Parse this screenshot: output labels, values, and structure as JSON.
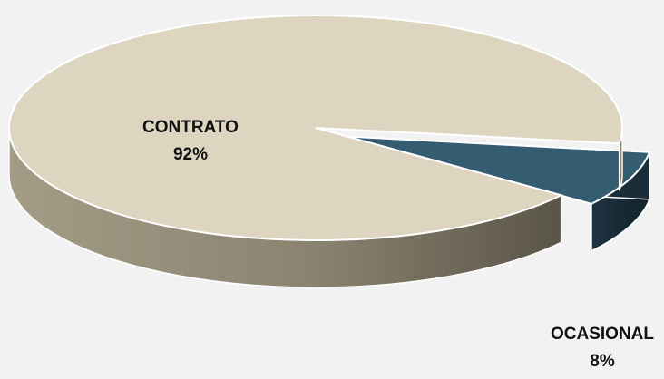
{
  "chart_data": {
    "type": "pie",
    "style": "3d-exploded",
    "legend": "none",
    "slices": [
      {
        "label": "CONTRATO",
        "value": 92,
        "display": "92%",
        "color": "#ddd5c0"
      },
      {
        "label": "OCASIONAL",
        "value": 8,
        "display": "8%",
        "color": "#345d72"
      }
    ],
    "background": "#f2f2f2"
  }
}
